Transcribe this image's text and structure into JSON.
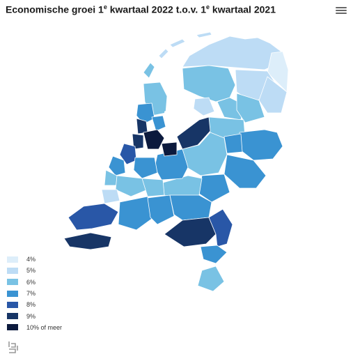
{
  "title": {
    "part1": "Economische groei 1",
    "sup1": "e",
    "part2": " kwartaal 2022 t.o.v. 1",
    "sup2": "e",
    "part3": " kwartaal 2021"
  },
  "menu_icon": "hamburger-menu-icon",
  "legend": [
    {
      "label": "4%",
      "color": "#ddeefa"
    },
    {
      "label": "5%",
      "color": "#bddcf5"
    },
    {
      "label": "6%",
      "color": "#79c2e4"
    },
    {
      "label": "7%",
      "color": "#3a93d2"
    },
    {
      "label": "8%",
      "color": "#2957a7"
    },
    {
      "label": "9%",
      "color": "#173566"
    },
    {
      "label": "10% of meer",
      "color": "#0c1a3d"
    }
  ],
  "logo_icon": "cbs-logo-icon"
}
